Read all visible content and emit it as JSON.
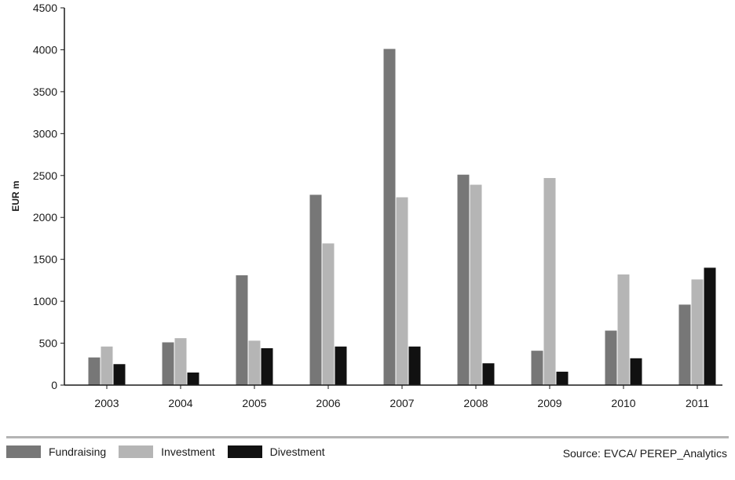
{
  "chart_data": {
    "type": "bar",
    "categories": [
      "2003",
      "2004",
      "2005",
      "2006",
      "2007",
      "2008",
      "2009",
      "2010",
      "2011"
    ],
    "series": [
      {
        "name": "Fundraising",
        "color": "#777777",
        "values": [
          330,
          510,
          1310,
          2270,
          4010,
          2510,
          410,
          650,
          960
        ]
      },
      {
        "name": "Investment",
        "color": "#b5b5b5",
        "values": [
          460,
          560,
          530,
          1690,
          2240,
          2390,
          2470,
          1320,
          1260
        ]
      },
      {
        "name": "Divestment",
        "color": "#111111",
        "values": [
          250,
          150,
          440,
          460,
          460,
          260,
          160,
          320,
          1400
        ]
      }
    ],
    "ylabel": "EUR m",
    "xlabel": "",
    "ylim": [
      0,
      4500
    ],
    "yticks": [
      0,
      500,
      1000,
      1500,
      2000,
      2500,
      3000,
      3500,
      4000,
      4500
    ],
    "grid": false,
    "legend": "bottom-left"
  },
  "source": "Source: EVCA/ PEREP_Analytics"
}
